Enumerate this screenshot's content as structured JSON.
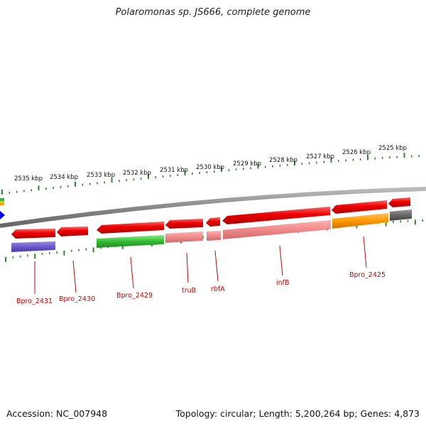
{
  "title": "Polaromonas sp. JS666, complete genome",
  "footer": {
    "accession": "Accession: NC_007948",
    "summary": "Topology: circular; Length: 5,200,264 bp; Genes: 4,873"
  },
  "ruler_ticks": [
    "2535 kbp",
    "2534 kbp",
    "2533 kbp",
    "2532 kbp",
    "2531 kbp",
    "2530 kbp",
    "2529 kbp",
    "2528 kbp",
    "2527 kbp",
    "2526 kbp",
    "2525 kbp"
  ],
  "gene_labels": [
    "Bpro_2431",
    "Bpro_2430",
    "Bpro_2429",
    "truB",
    "rbfA",
    "infB",
    "Bpro_2425"
  ],
  "colors": {
    "gene_red": "#e60000",
    "backbone": "#888888",
    "ticks": "#2a8a2a",
    "label": "#cc0000",
    "purple": "#6a5acd",
    "green": "#33bb33",
    "pink": "#f08a8a",
    "orange": "#ff9900",
    "gray": "#666666",
    "blue": "#0000ff"
  }
}
